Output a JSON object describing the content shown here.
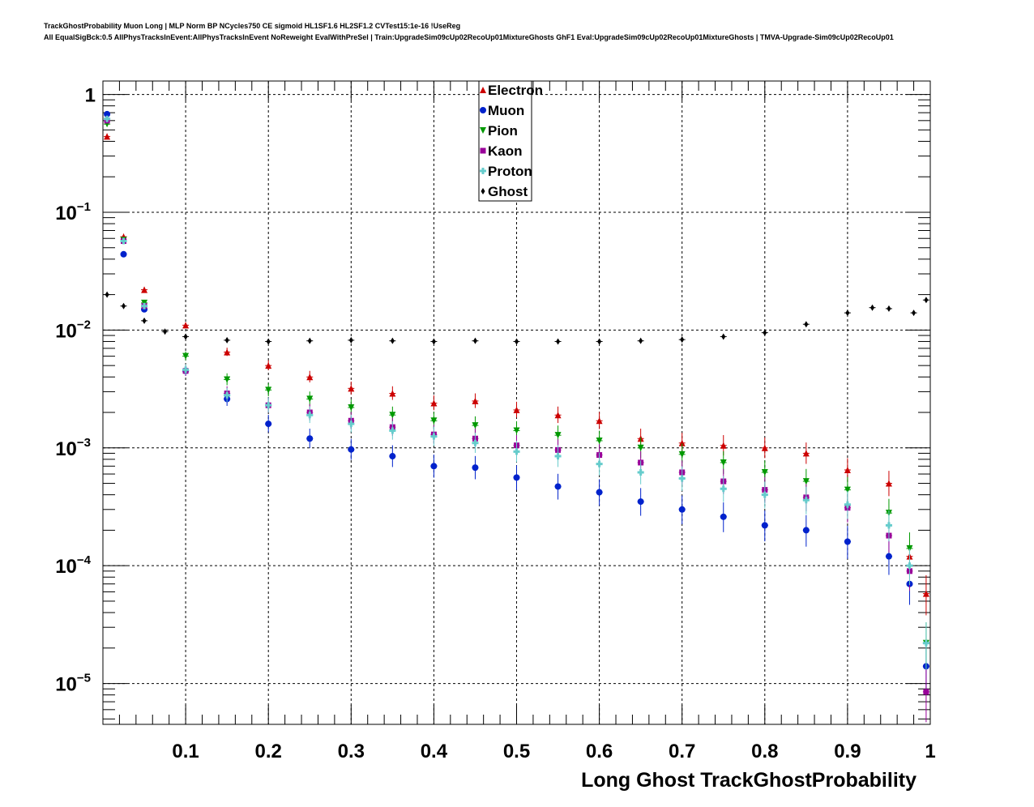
{
  "title": {
    "line1": "TrackGhostProbability Muon Long | MLP Norm BP NCycles750 CE sigmoid HL1SF1.6 HL2SF1.2 CVTest15:1e-16 !UseReg",
    "line2": "All EqualSigBck:0.5 AllPhysTracksInEvent:AllPhysTracksInEvent NoReweight EvalWithPreSel | Train:UpgradeSim09cUp02RecoUp01MixtureGhosts GhF1 Eval:UpgradeSim09cUp02RecoUp01MixtureGhosts | TMVA-Upgrade-Sim09cUp02RecoUp01"
  },
  "chart_data": {
    "type": "scatter",
    "xlabel": "Long Ghost TrackGhostProbability",
    "ylabel": "",
    "xlim": [
      0,
      1
    ],
    "ylim": [
      4.5e-06,
      1.3
    ],
    "yscale": "log",
    "grid": true,
    "legend_position": "top-center",
    "x_tick_labels": [
      "0.1",
      "0.2",
      "0.3",
      "0.4",
      "0.5",
      "0.6",
      "0.7",
      "0.8",
      "0.9",
      "1"
    ],
    "y_tick_labels": [
      {
        "base": "10",
        "exp": "−5"
      },
      {
        "base": "10",
        "exp": "−4"
      },
      {
        "base": "10",
        "exp": "−3"
      },
      {
        "base": "10",
        "exp": "−2"
      },
      {
        "base": "10",
        "exp": "−1"
      },
      {
        "base": "1",
        "exp": ""
      }
    ],
    "series": [
      {
        "name": "Electron",
        "color": "#cc0000",
        "marker": "triangle-up",
        "x": [
          0.005,
          0.025,
          0.05,
          0.1,
          0.15,
          0.2,
          0.25,
          0.3,
          0.35,
          0.4,
          0.45,
          0.5,
          0.55,
          0.6,
          0.65,
          0.7,
          0.75,
          0.8,
          0.85,
          0.9,
          0.95,
          0.975,
          0.995
        ],
        "y": [
          0.44,
          0.062,
          0.022,
          0.011,
          0.0065,
          0.005,
          0.004,
          0.0032,
          0.0029,
          0.0024,
          0.0025,
          0.0021,
          0.0019,
          0.0017,
          0.0012,
          0.0011,
          0.00105,
          0.001,
          0.0009,
          0.00065,
          0.0005,
          0.00012,
          5.8e-05
        ]
      },
      {
        "name": "Muon",
        "color": "#0022cc",
        "marker": "circle",
        "x": [
          0.005,
          0.025,
          0.05,
          0.1,
          0.15,
          0.2,
          0.25,
          0.3,
          0.35,
          0.4,
          0.45,
          0.5,
          0.55,
          0.6,
          0.65,
          0.7,
          0.75,
          0.8,
          0.85,
          0.9,
          0.95,
          0.975,
          0.995
        ],
        "y": [
          0.68,
          0.044,
          0.015,
          0.0045,
          0.0026,
          0.0016,
          0.0012,
          0.00097,
          0.00085,
          0.0007,
          0.00068,
          0.00056,
          0.00047,
          0.00042,
          0.00035,
          0.0003,
          0.00026,
          0.00022,
          0.0002,
          0.00016,
          0.00012,
          7e-05,
          1.4e-05
        ]
      },
      {
        "name": "Pion",
        "color": "#009900",
        "marker": "triangle-down",
        "x": [
          0.005,
          0.025,
          0.05,
          0.1,
          0.15,
          0.2,
          0.25,
          0.3,
          0.35,
          0.4,
          0.45,
          0.5,
          0.55,
          0.6,
          0.65,
          0.7,
          0.75,
          0.8,
          0.85,
          0.9,
          0.95,
          0.975,
          0.995
        ],
        "y": [
          0.56,
          0.058,
          0.017,
          0.006,
          0.0038,
          0.0031,
          0.0026,
          0.0022,
          0.0019,
          0.0017,
          0.00155,
          0.0014,
          0.00128,
          0.00115,
          0.001,
          0.00088,
          0.00075,
          0.00062,
          0.00052,
          0.00044,
          0.00028,
          0.00014,
          2.2e-05
        ]
      },
      {
        "name": "Kaon",
        "color": "#990099",
        "marker": "square",
        "x": [
          0.005,
          0.025,
          0.05,
          0.1,
          0.15,
          0.2,
          0.25,
          0.3,
          0.35,
          0.4,
          0.45,
          0.5,
          0.55,
          0.6,
          0.65,
          0.7,
          0.75,
          0.8,
          0.85,
          0.9,
          0.95,
          0.975,
          0.995
        ],
        "y": [
          0.6,
          0.057,
          0.016,
          0.0045,
          0.0029,
          0.0023,
          0.002,
          0.0017,
          0.0015,
          0.0013,
          0.0012,
          0.00105,
          0.00096,
          0.00087,
          0.00075,
          0.00062,
          0.00052,
          0.00044,
          0.00038,
          0.00031,
          0.00018,
          9e-05,
          8.5e-06
        ]
      },
      {
        "name": "Proton",
        "color": "#66cccc",
        "marker": "cross",
        "x": [
          0.005,
          0.025,
          0.05,
          0.1,
          0.15,
          0.2,
          0.25,
          0.3,
          0.35,
          0.4,
          0.45,
          0.5,
          0.55,
          0.6,
          0.65,
          0.7,
          0.75,
          0.8,
          0.85,
          0.9,
          0.95,
          0.975,
          0.995
        ],
        "y": [
          0.62,
          0.057,
          0.016,
          0.0046,
          0.0028,
          0.0023,
          0.0019,
          0.0016,
          0.0014,
          0.00125,
          0.0011,
          0.00093,
          0.00085,
          0.00073,
          0.00062,
          0.00055,
          0.00045,
          0.0004,
          0.00036,
          0.00033,
          0.00022,
          0.0001,
          2.2e-05
        ]
      },
      {
        "name": "Ghost",
        "color": "#000000",
        "marker": "diamond",
        "x": [
          0.005,
          0.025,
          0.05,
          0.075,
          0.1,
          0.15,
          0.2,
          0.25,
          0.3,
          0.35,
          0.4,
          0.45,
          0.5,
          0.55,
          0.6,
          0.65,
          0.7,
          0.75,
          0.8,
          0.85,
          0.9,
          0.93,
          0.95,
          0.98,
          0.995
        ],
        "y": [
          0.02,
          0.016,
          0.012,
          0.0097,
          0.0088,
          0.0082,
          0.008,
          0.0081,
          0.0082,
          0.0081,
          0.008,
          0.0081,
          0.008,
          0.008,
          0.008,
          0.0081,
          0.0083,
          0.0088,
          0.0095,
          0.0112,
          0.014,
          0.0155,
          0.0152,
          0.014,
          0.018
        ]
      }
    ]
  }
}
